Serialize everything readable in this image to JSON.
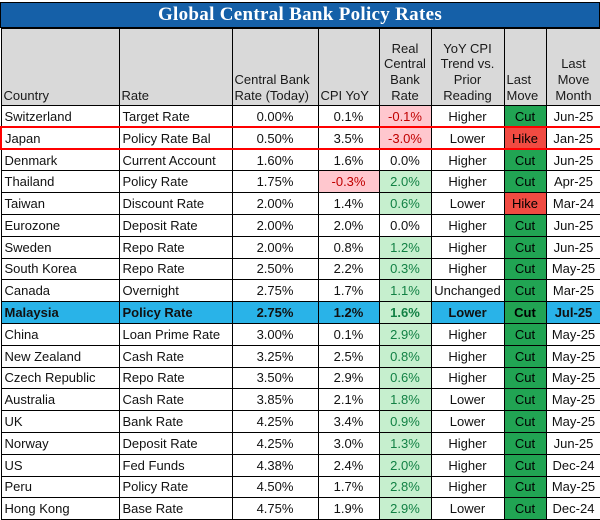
{
  "title": "Global Central Bank Policy Rates",
  "colors": {
    "title_bg": "#1560A8",
    "title_text": "#FFFFFF",
    "header_bg": "#D9D9D9",
    "cut_bg": "#21A453",
    "hike_bg": "#F04B42",
    "good_bg": "#C6EFCE",
    "good_text": "#128144",
    "bad_bg": "#FFC7CE",
    "bad_text": "#C00000",
    "highlight_bg": "#29B3E8",
    "outline_red": "#FF0000",
    "grid": "#000000"
  },
  "chart_data": {
    "type": "table",
    "title": "Global Central Bank Policy Rates",
    "columns": [
      "Country",
      "Rate",
      "Central Bank Rate (Today)",
      "CPI YoY",
      "Real Central Bank Rate",
      "YoY CPI Trend vs. Prior Reading",
      "Last Move",
      "Last Move Month"
    ],
    "rows": [
      {
        "country": "Switzerland",
        "rate": "Target Rate",
        "cbr_today": "0.00%",
        "cpi_yoy": "0.1%",
        "cpi_style": null,
        "real_rate": "-0.1%",
        "real_style": "bad",
        "trend": "Higher",
        "last_move": "Cut",
        "move_style": "cut",
        "last_move_month": "Jun-25",
        "highlight": false,
        "outlined": false
      },
      {
        "country": "Japan",
        "rate": "Policy Rate Bal",
        "cbr_today": "0.50%",
        "cpi_yoy": "3.5%",
        "cpi_style": null,
        "real_rate": "-3.0%",
        "real_style": "bad",
        "trend": "Lower",
        "last_move": "Hike",
        "move_style": "hike",
        "last_move_month": "Jan-25",
        "highlight": false,
        "outlined": true
      },
      {
        "country": "Denmark",
        "rate": "Current Account",
        "cbr_today": "1.60%",
        "cpi_yoy": "1.6%",
        "cpi_style": null,
        "real_rate": "0.0%",
        "real_style": null,
        "trend": "Higher",
        "last_move": "Cut",
        "move_style": "cut",
        "last_move_month": "Jun-25",
        "highlight": false,
        "outlined": false
      },
      {
        "country": "Thailand",
        "rate": "Policy Rate",
        "cbr_today": "1.75%",
        "cpi_yoy": "-0.3%",
        "cpi_style": "bad",
        "real_rate": "2.0%",
        "real_style": "good",
        "trend": "Higher",
        "last_move": "Cut",
        "move_style": "cut",
        "last_move_month": "Apr-25",
        "highlight": false,
        "outlined": false
      },
      {
        "country": "Taiwan",
        "rate": "Discount Rate",
        "cbr_today": "2.00%",
        "cpi_yoy": "1.4%",
        "cpi_style": null,
        "real_rate": "0.6%",
        "real_style": "good",
        "trend": "Lower",
        "last_move": "Hike",
        "move_style": "hike",
        "last_move_month": "Mar-24",
        "highlight": false,
        "outlined": false
      },
      {
        "country": "Eurozone",
        "rate": "Deposit Rate",
        "cbr_today": "2.00%",
        "cpi_yoy": "2.0%",
        "cpi_style": null,
        "real_rate": "0.0%",
        "real_style": null,
        "trend": "Higher",
        "last_move": "Cut",
        "move_style": "cut",
        "last_move_month": "Jun-25",
        "highlight": false,
        "outlined": false
      },
      {
        "country": "Sweden",
        "rate": "Repo Rate",
        "cbr_today": "2.00%",
        "cpi_yoy": "0.8%",
        "cpi_style": null,
        "real_rate": "1.2%",
        "real_style": "good",
        "trend": "Higher",
        "last_move": "Cut",
        "move_style": "cut",
        "last_move_month": "Jun-25",
        "highlight": false,
        "outlined": false
      },
      {
        "country": "South Korea",
        "rate": "Repo Rate",
        "cbr_today": "2.50%",
        "cpi_yoy": "2.2%",
        "cpi_style": null,
        "real_rate": "0.3%",
        "real_style": "good",
        "trend": "Higher",
        "last_move": "Cut",
        "move_style": "cut",
        "last_move_month": "May-25",
        "highlight": false,
        "outlined": false
      },
      {
        "country": "Canada",
        "rate": "Overnight",
        "cbr_today": "2.75%",
        "cpi_yoy": "1.7%",
        "cpi_style": null,
        "real_rate": "1.1%",
        "real_style": "good",
        "trend": "Unchanged",
        "last_move": "Cut",
        "move_style": "cut",
        "last_move_month": "Mar-25",
        "highlight": false,
        "outlined": false
      },
      {
        "country": "Malaysia",
        "rate": "Policy Rate",
        "cbr_today": "2.75%",
        "cpi_yoy": "1.2%",
        "cpi_style": null,
        "real_rate": "1.6%",
        "real_style": "good",
        "trend": "Lower",
        "last_move": "Cut",
        "move_style": "cut",
        "last_move_month": "Jul-25",
        "highlight": true,
        "outlined": false
      },
      {
        "country": "China",
        "rate": "Loan Prime Rate",
        "cbr_today": "3.00%",
        "cpi_yoy": "0.1%",
        "cpi_style": null,
        "real_rate": "2.9%",
        "real_style": "good",
        "trend": "Higher",
        "last_move": "Cut",
        "move_style": "cut",
        "last_move_month": "May-25",
        "highlight": false,
        "outlined": false
      },
      {
        "country": "New Zealand",
        "rate": "Cash Rate",
        "cbr_today": "3.25%",
        "cpi_yoy": "2.5%",
        "cpi_style": null,
        "real_rate": "0.8%",
        "real_style": "good",
        "trend": "Higher",
        "last_move": "Cut",
        "move_style": "cut",
        "last_move_month": "May-25",
        "highlight": false,
        "outlined": false
      },
      {
        "country": "Czech Republic",
        "rate": "Repo Rate",
        "cbr_today": "3.50%",
        "cpi_yoy": "2.9%",
        "cpi_style": null,
        "real_rate": "0.6%",
        "real_style": "good",
        "trend": "Higher",
        "last_move": "Cut",
        "move_style": "cut",
        "last_move_month": "May-25",
        "highlight": false,
        "outlined": false
      },
      {
        "country": "Australia",
        "rate": "Cash Rate",
        "cbr_today": "3.85%",
        "cpi_yoy": "2.1%",
        "cpi_style": null,
        "real_rate": "1.8%",
        "real_style": "good",
        "trend": "Lower",
        "last_move": "Cut",
        "move_style": "cut",
        "last_move_month": "May-25",
        "highlight": false,
        "outlined": false
      },
      {
        "country": "UK",
        "rate": "Bank Rate",
        "cbr_today": "4.25%",
        "cpi_yoy": "3.4%",
        "cpi_style": null,
        "real_rate": "0.9%",
        "real_style": "good",
        "trend": "Lower",
        "last_move": "Cut",
        "move_style": "cut",
        "last_move_month": "May-25",
        "highlight": false,
        "outlined": false
      },
      {
        "country": "Norway",
        "rate": "Deposit Rate",
        "cbr_today": "4.25%",
        "cpi_yoy": "3.0%",
        "cpi_style": null,
        "real_rate": "1.3%",
        "real_style": "good",
        "trend": "Higher",
        "last_move": "Cut",
        "move_style": "cut",
        "last_move_month": "Jun-25",
        "highlight": false,
        "outlined": false
      },
      {
        "country": "US",
        "rate": "Fed Funds",
        "cbr_today": "4.38%",
        "cpi_yoy": "2.4%",
        "cpi_style": null,
        "real_rate": "2.0%",
        "real_style": "good",
        "trend": "Higher",
        "last_move": "Cut",
        "move_style": "cut",
        "last_move_month": "Dec-24",
        "highlight": false,
        "outlined": false
      },
      {
        "country": "Peru",
        "rate": "Policy Rate",
        "cbr_today": "4.50%",
        "cpi_yoy": "1.7%",
        "cpi_style": null,
        "real_rate": "2.8%",
        "real_style": "good",
        "trend": "Higher",
        "last_move": "Cut",
        "move_style": "cut",
        "last_move_month": "May-25",
        "highlight": false,
        "outlined": false
      },
      {
        "country": "Hong Kong",
        "rate": "Base Rate",
        "cbr_today": "4.75%",
        "cpi_yoy": "1.9%",
        "cpi_style": null,
        "real_rate": "2.9%",
        "real_style": "good",
        "trend": "Lower",
        "last_move": "Cut",
        "move_style": "cut",
        "last_move_month": "Dec-24",
        "highlight": false,
        "outlined": false
      }
    ]
  }
}
